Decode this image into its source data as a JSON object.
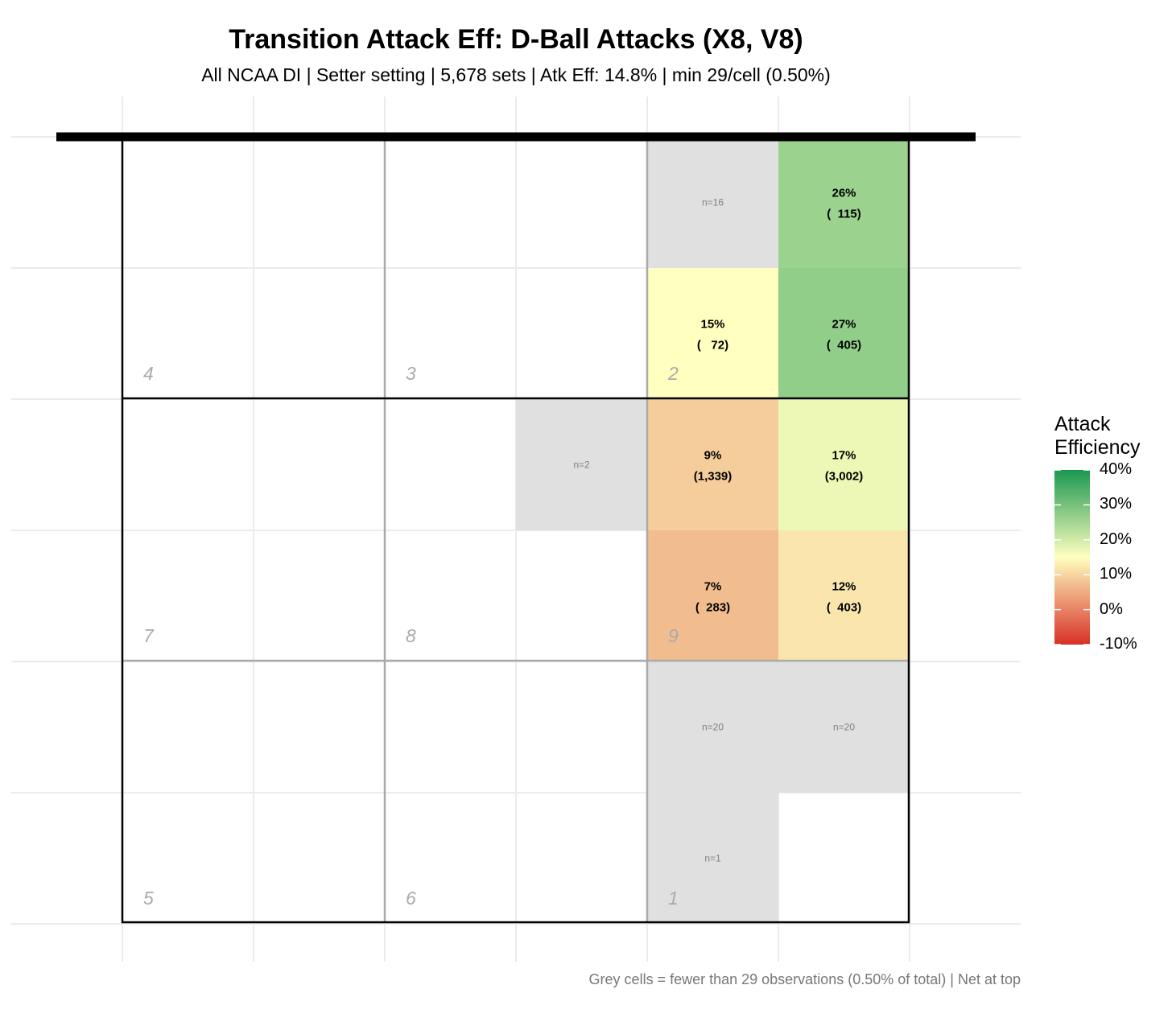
{
  "chart_data": {
    "type": "heatmap",
    "title": "Transition Attack Eff: D-Ball Attacks (X8, V8)",
    "subtitle": "All NCAA DI | Setter setting | 5,678 sets | Atk Eff: 14.8% | min 29/cell (0.50%)",
    "caption": "Grey cells = fewer than 29 observations (0.50% of total) | Net at top",
    "colors": {
      "grey_cell": "#e0e0e0",
      "low": "#d73027",
      "mid": "#ffffbf",
      "high": "#1a9850"
    },
    "grid": {
      "columns": 6,
      "rows": 6
    },
    "zones": [
      {
        "label": "4",
        "col": 0,
        "row": 0
      },
      {
        "label": "3",
        "col": 1,
        "row": 0
      },
      {
        "label": "2",
        "col": 2,
        "row": 0
      },
      {
        "label": "7",
        "col": 0,
        "row": 1
      },
      {
        "label": "8",
        "col": 1,
        "row": 1
      },
      {
        "label": "9",
        "col": 2,
        "row": 1
      },
      {
        "label": "5",
        "col": 0,
        "row": 2
      },
      {
        "label": "6",
        "col": 1,
        "row": 2
      },
      {
        "label": "1",
        "col": 2,
        "row": 2
      }
    ],
    "cells": [
      {
        "col": 4,
        "row": 0,
        "grey": true,
        "n_label": "n=16"
      },
      {
        "col": 5,
        "row": 0,
        "grey": false,
        "eff": 26,
        "eff_label": "26%",
        "count_label": "(  115)"
      },
      {
        "col": 4,
        "row": 1,
        "grey": false,
        "eff": 15,
        "eff_label": "15%",
        "count_label": "(   72)"
      },
      {
        "col": 5,
        "row": 1,
        "grey": false,
        "eff": 27,
        "eff_label": "27%",
        "count_label": "(  405)"
      },
      {
        "col": 3,
        "row": 2,
        "grey": true,
        "n_label": "n=2"
      },
      {
        "col": 4,
        "row": 2,
        "grey": false,
        "eff": 9,
        "eff_label": "9%",
        "count_label": "(1,339)"
      },
      {
        "col": 5,
        "row": 2,
        "grey": false,
        "eff": 17,
        "eff_label": "17%",
        "count_label": "(3,002)"
      },
      {
        "col": 4,
        "row": 3,
        "grey": false,
        "eff": 7,
        "eff_label": "7%",
        "count_label": "(  283)"
      },
      {
        "col": 5,
        "row": 3,
        "grey": false,
        "eff": 12,
        "eff_label": "12%",
        "count_label": "(  403)"
      },
      {
        "col": 4,
        "row": 4,
        "grey": true,
        "n_label": "n=20"
      },
      {
        "col": 5,
        "row": 4,
        "grey": true,
        "n_label": "n=20"
      },
      {
        "col": 4,
        "row": 5,
        "grey": true,
        "n_label": "n=1"
      }
    ],
    "legend": {
      "title_line1": "Attack",
      "title_line2": "Efficiency",
      "min": -10,
      "max": 40,
      "mid": 15,
      "ticks": [
        {
          "value": 40,
          "label": "40%"
        },
        {
          "value": 30,
          "label": "30%"
        },
        {
          "value": 20,
          "label": "20%"
        },
        {
          "value": 10,
          "label": "10%"
        },
        {
          "value": 0,
          "label": "0%"
        },
        {
          "value": -10,
          "label": "-10%"
        }
      ],
      "placement": "right"
    }
  }
}
